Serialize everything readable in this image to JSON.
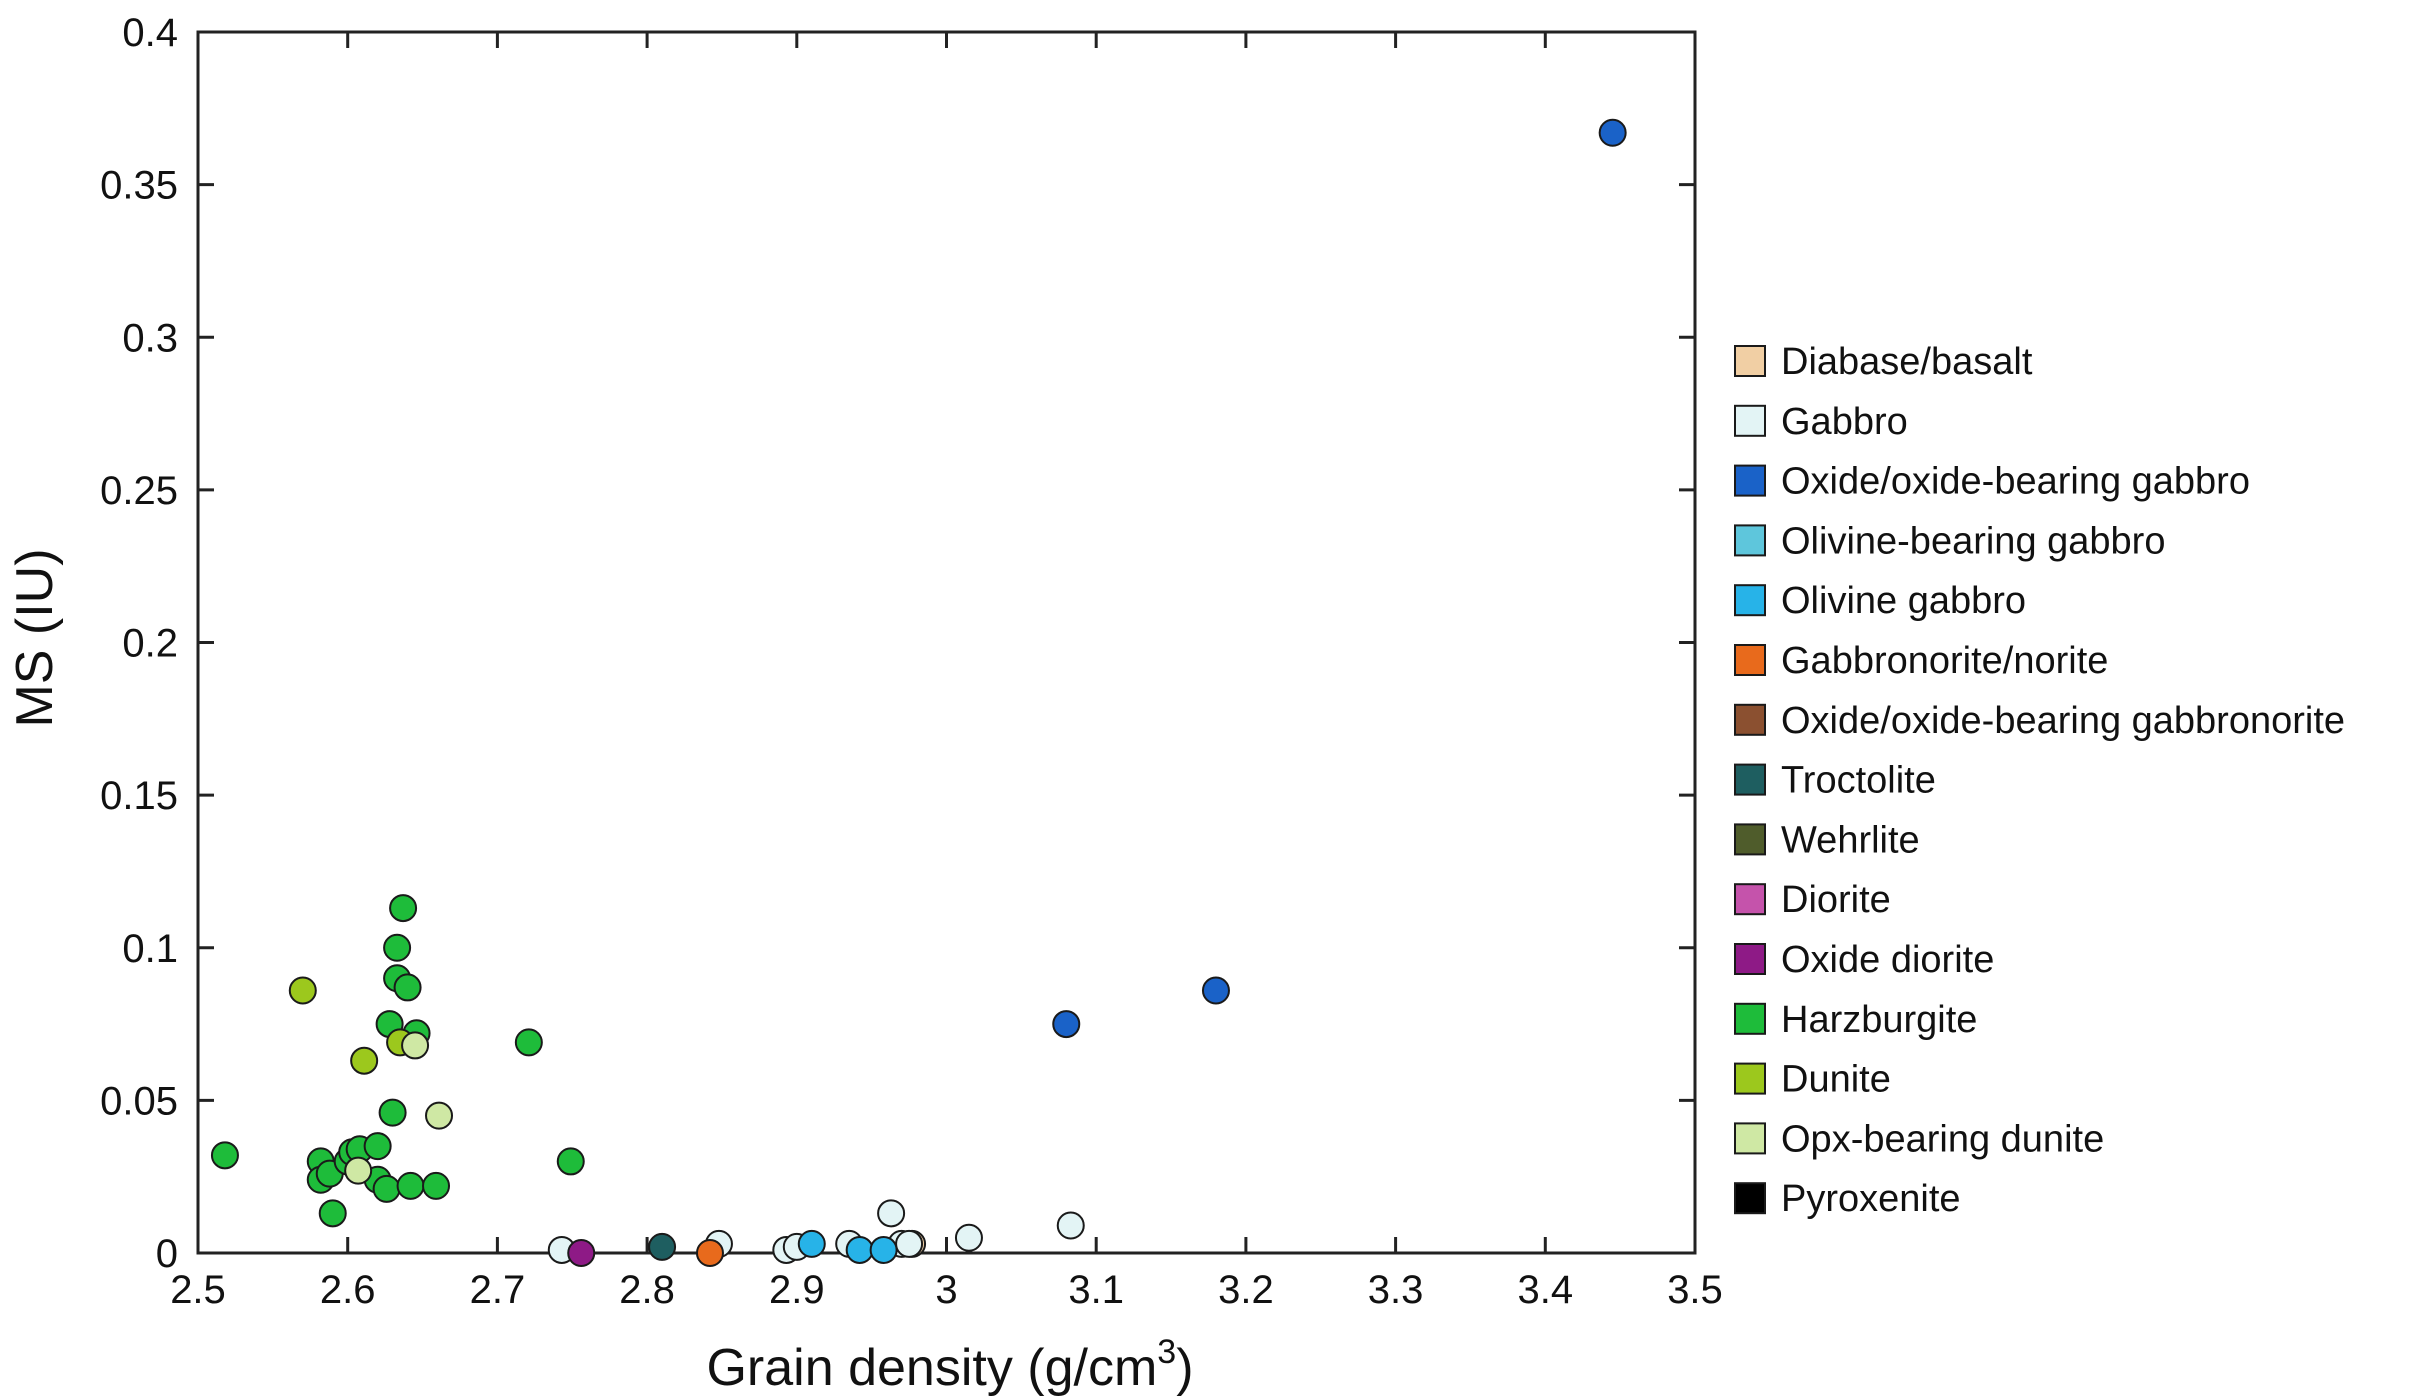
{
  "chart_data": {
    "type": "scatter",
    "xlabel": "Grain density (g/cm",
    "xlabel_sup": "3",
    "xlabel_end": ")",
    "ylabel": "MS (IU)",
    "xlim": [
      2.5,
      3.5
    ],
    "ylim": [
      0,
      0.4
    ],
    "xticks": [
      {
        "v": 2.5,
        "label": "2.5"
      },
      {
        "v": 2.6,
        "label": "2.6"
      },
      {
        "v": 2.7,
        "label": "2.7"
      },
      {
        "v": 2.8,
        "label": "2.8"
      },
      {
        "v": 2.9,
        "label": "2.9"
      },
      {
        "v": 3.0,
        "label": "3"
      },
      {
        "v": 3.1,
        "label": "3.1"
      },
      {
        "v": 3.2,
        "label": "3.2"
      },
      {
        "v": 3.3,
        "label": "3.3"
      },
      {
        "v": 3.4,
        "label": "3.4"
      },
      {
        "v": 3.5,
        "label": "3.5"
      }
    ],
    "yticks": [
      {
        "v": 0,
        "label": "0"
      },
      {
        "v": 0.05,
        "label": "0.05"
      },
      {
        "v": 0.1,
        "label": "0.1"
      },
      {
        "v": 0.15,
        "label": "0.15"
      },
      {
        "v": 0.2,
        "label": "0.2"
      },
      {
        "v": 0.25,
        "label": "0.25"
      },
      {
        "v": 0.3,
        "label": "0.3"
      },
      {
        "v": 0.35,
        "label": "0.35"
      },
      {
        "v": 0.4,
        "label": "0.4"
      }
    ],
    "grid": false,
    "legend_position": "right",
    "series": [
      {
        "name": "Diabase/basalt",
        "color": "#f1cfa4",
        "points": [
          [
            2.977,
            0.003
          ]
        ]
      },
      {
        "name": "Gabbro",
        "color": "#e3f4f5",
        "points": [
          [
            2.743,
            0.001
          ],
          [
            2.848,
            0.003
          ],
          [
            2.893,
            0.001
          ],
          [
            2.9,
            0.002
          ],
          [
            2.935,
            0.003
          ],
          [
            2.963,
            0.013
          ],
          [
            2.97,
            0.003
          ],
          [
            2.975,
            0.003
          ],
          [
            3.015,
            0.005
          ],
          [
            3.083,
            0.009
          ]
        ]
      },
      {
        "name": "Oxide/oxide-bearing gabbro",
        "color": "#1a62c8",
        "points": [
          [
            3.08,
            0.075
          ],
          [
            3.18,
            0.086
          ],
          [
            3.445,
            0.367
          ]
        ]
      },
      {
        "name": "Olivine-bearing gabbro",
        "color": "#5ec6dc",
        "points": []
      },
      {
        "name": "Olivine gabbro",
        "color": "#27b3e8",
        "points": [
          [
            2.91,
            0.003
          ],
          [
            2.942,
            0.001
          ],
          [
            2.958,
            0.001
          ]
        ]
      },
      {
        "name": "Gabbronorite/norite",
        "color": "#e86a1c",
        "points": [
          [
            2.842,
            0.0
          ]
        ]
      },
      {
        "name": "Oxide/oxide-bearing gabbronorite",
        "color": "#8b5030",
        "points": []
      },
      {
        "name": "Troctolite",
        "color": "#1e5e60",
        "points": [
          [
            2.81,
            0.002
          ]
        ]
      },
      {
        "name": "Wehrlite",
        "color": "#4f5c2b",
        "points": []
      },
      {
        "name": "Diorite",
        "color": "#c553ab",
        "points": []
      },
      {
        "name": "Oxide diorite",
        "color": "#8e1a86",
        "points": [
          [
            2.756,
            0.0
          ]
        ]
      },
      {
        "name": "Harzburgite",
        "color": "#1ebc3a",
        "points": [
          [
            2.518,
            0.032
          ],
          [
            2.582,
            0.03
          ],
          [
            2.582,
            0.024
          ],
          [
            2.588,
            0.026
          ],
          [
            2.59,
            0.013
          ],
          [
            2.6,
            0.03
          ],
          [
            2.603,
            0.033
          ],
          [
            2.608,
            0.034
          ],
          [
            2.62,
            0.035
          ],
          [
            2.62,
            0.024
          ],
          [
            2.626,
            0.021
          ],
          [
            2.628,
            0.075
          ],
          [
            2.63,
            0.046
          ],
          [
            2.633,
            0.09
          ],
          [
            2.633,
            0.1
          ],
          [
            2.637,
            0.113
          ],
          [
            2.64,
            0.087
          ],
          [
            2.642,
            0.022
          ],
          [
            2.646,
            0.072
          ],
          [
            2.659,
            0.022
          ],
          [
            2.721,
            0.069
          ],
          [
            2.749,
            0.03
          ]
        ]
      },
      {
        "name": "Dunite",
        "color": "#9cc81d",
        "points": [
          [
            2.57,
            0.086
          ],
          [
            2.611,
            0.063
          ],
          [
            2.635,
            0.069
          ]
        ]
      },
      {
        "name": "Opx-bearing dunite",
        "color": "#cfe8a4",
        "points": [
          [
            2.607,
            0.027
          ],
          [
            2.645,
            0.068
          ],
          [
            2.661,
            0.045
          ]
        ]
      },
      {
        "name": "Pyroxenite",
        "color": "#000000",
        "points": []
      }
    ]
  }
}
